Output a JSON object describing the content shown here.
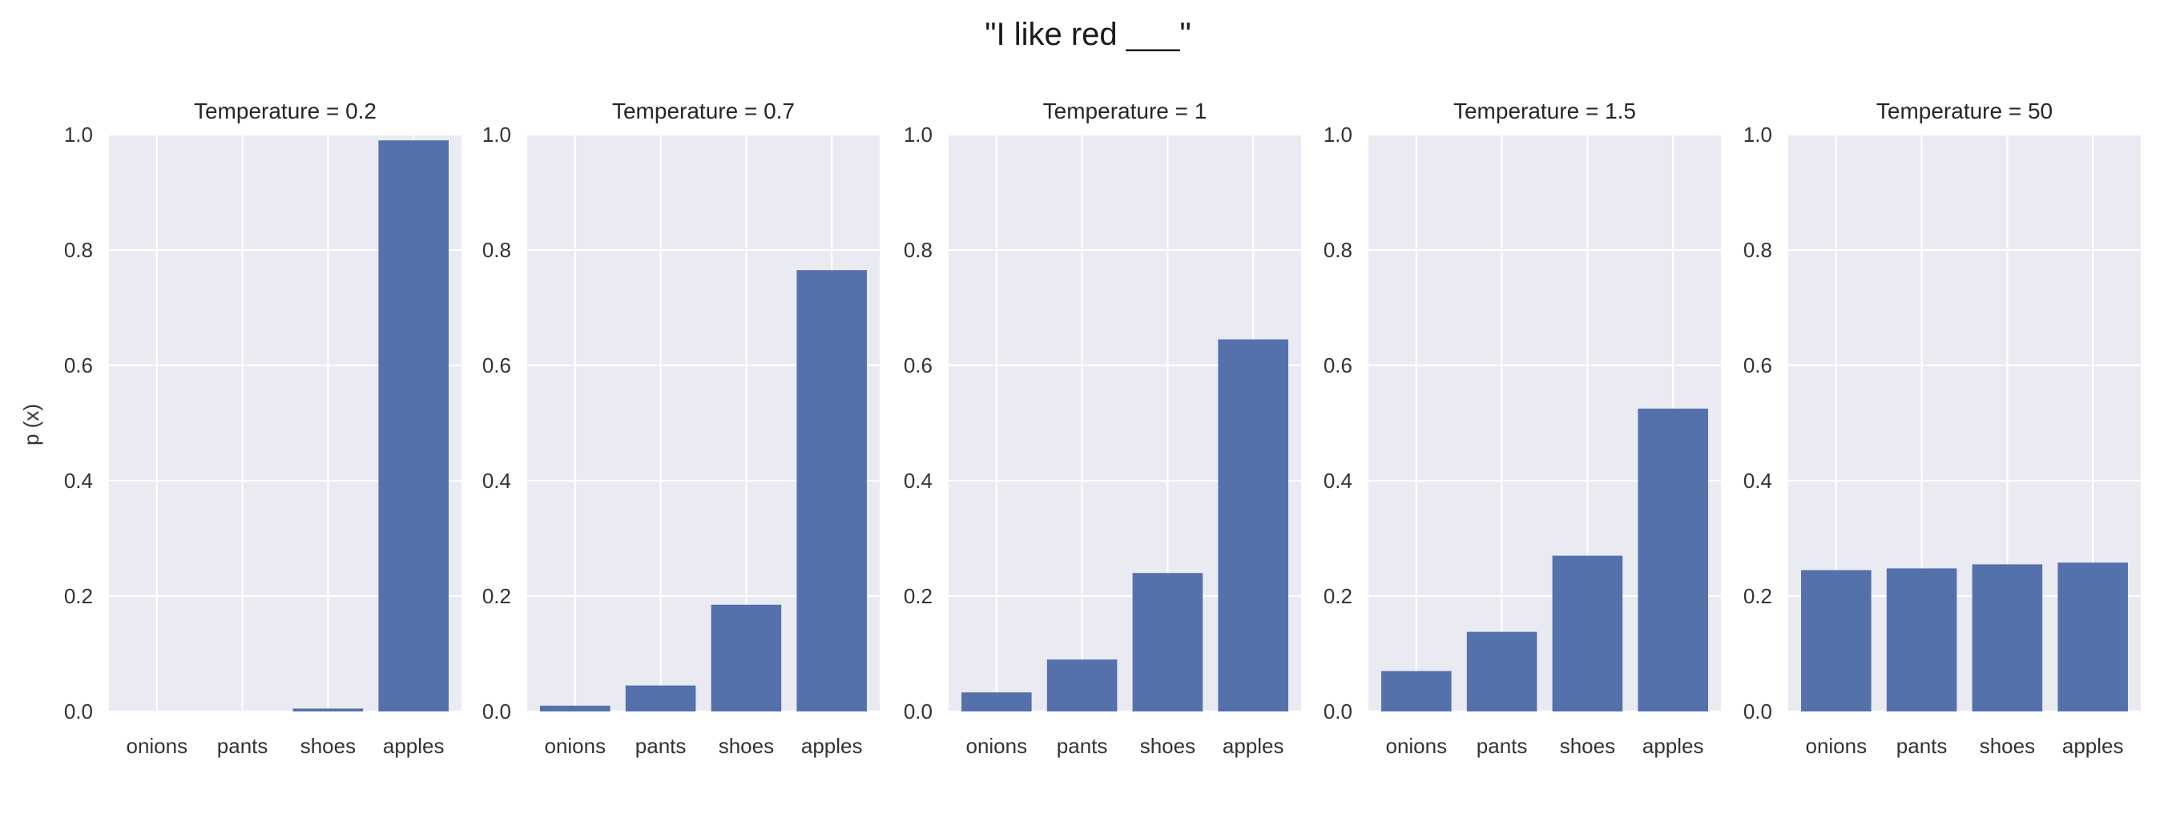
{
  "figure": {
    "suptitle": "\"I like red ___\"",
    "ylabel": "p (x)",
    "background_color": "#eaeaf2",
    "bar_color": "#5471ab",
    "grid_color": "#ffffff"
  },
  "chart_data": [
    {
      "type": "bar",
      "title": "Temperature = 0.2",
      "categories": [
        "onions",
        "pants",
        "shoes",
        "apples"
      ],
      "values": [
        0.0,
        0.0,
        0.005,
        0.99
      ],
      "ylim": [
        0,
        1.0
      ],
      "yticks": [
        "0.0",
        "0.2",
        "0.4",
        "0.6",
        "0.8",
        "1.0"
      ],
      "grid": true
    },
    {
      "type": "bar",
      "title": "Temperature = 0.7",
      "categories": [
        "onions",
        "pants",
        "shoes",
        "apples"
      ],
      "values": [
        0.01,
        0.045,
        0.185,
        0.765
      ],
      "ylim": [
        0,
        1.0
      ],
      "yticks": [
        "0.0",
        "0.2",
        "0.4",
        "0.6",
        "0.8",
        "1.0"
      ],
      "grid": true
    },
    {
      "type": "bar",
      "title": "Temperature = 1",
      "categories": [
        "onions",
        "pants",
        "shoes",
        "apples"
      ],
      "values": [
        0.033,
        0.09,
        0.24,
        0.645
      ],
      "ylim": [
        0,
        1.0
      ],
      "yticks": [
        "0.0",
        "0.2",
        "0.4",
        "0.6",
        "0.8",
        "1.0"
      ],
      "grid": true
    },
    {
      "type": "bar",
      "title": "Temperature = 1.5",
      "categories": [
        "onions",
        "pants",
        "shoes",
        "apples"
      ],
      "values": [
        0.07,
        0.138,
        0.27,
        0.525
      ],
      "ylim": [
        0,
        1.0
      ],
      "yticks": [
        "0.0",
        "0.2",
        "0.4",
        "0.6",
        "0.8",
        "1.0"
      ],
      "grid": true
    },
    {
      "type": "bar",
      "title": "Temperature = 50",
      "categories": [
        "onions",
        "pants",
        "shoes",
        "apples"
      ],
      "values": [
        0.245,
        0.248,
        0.255,
        0.258
      ],
      "ylim": [
        0,
        1.0
      ],
      "yticks": [
        "0.0",
        "0.2",
        "0.4",
        "0.6",
        "0.8",
        "1.0"
      ],
      "grid": true
    }
  ]
}
